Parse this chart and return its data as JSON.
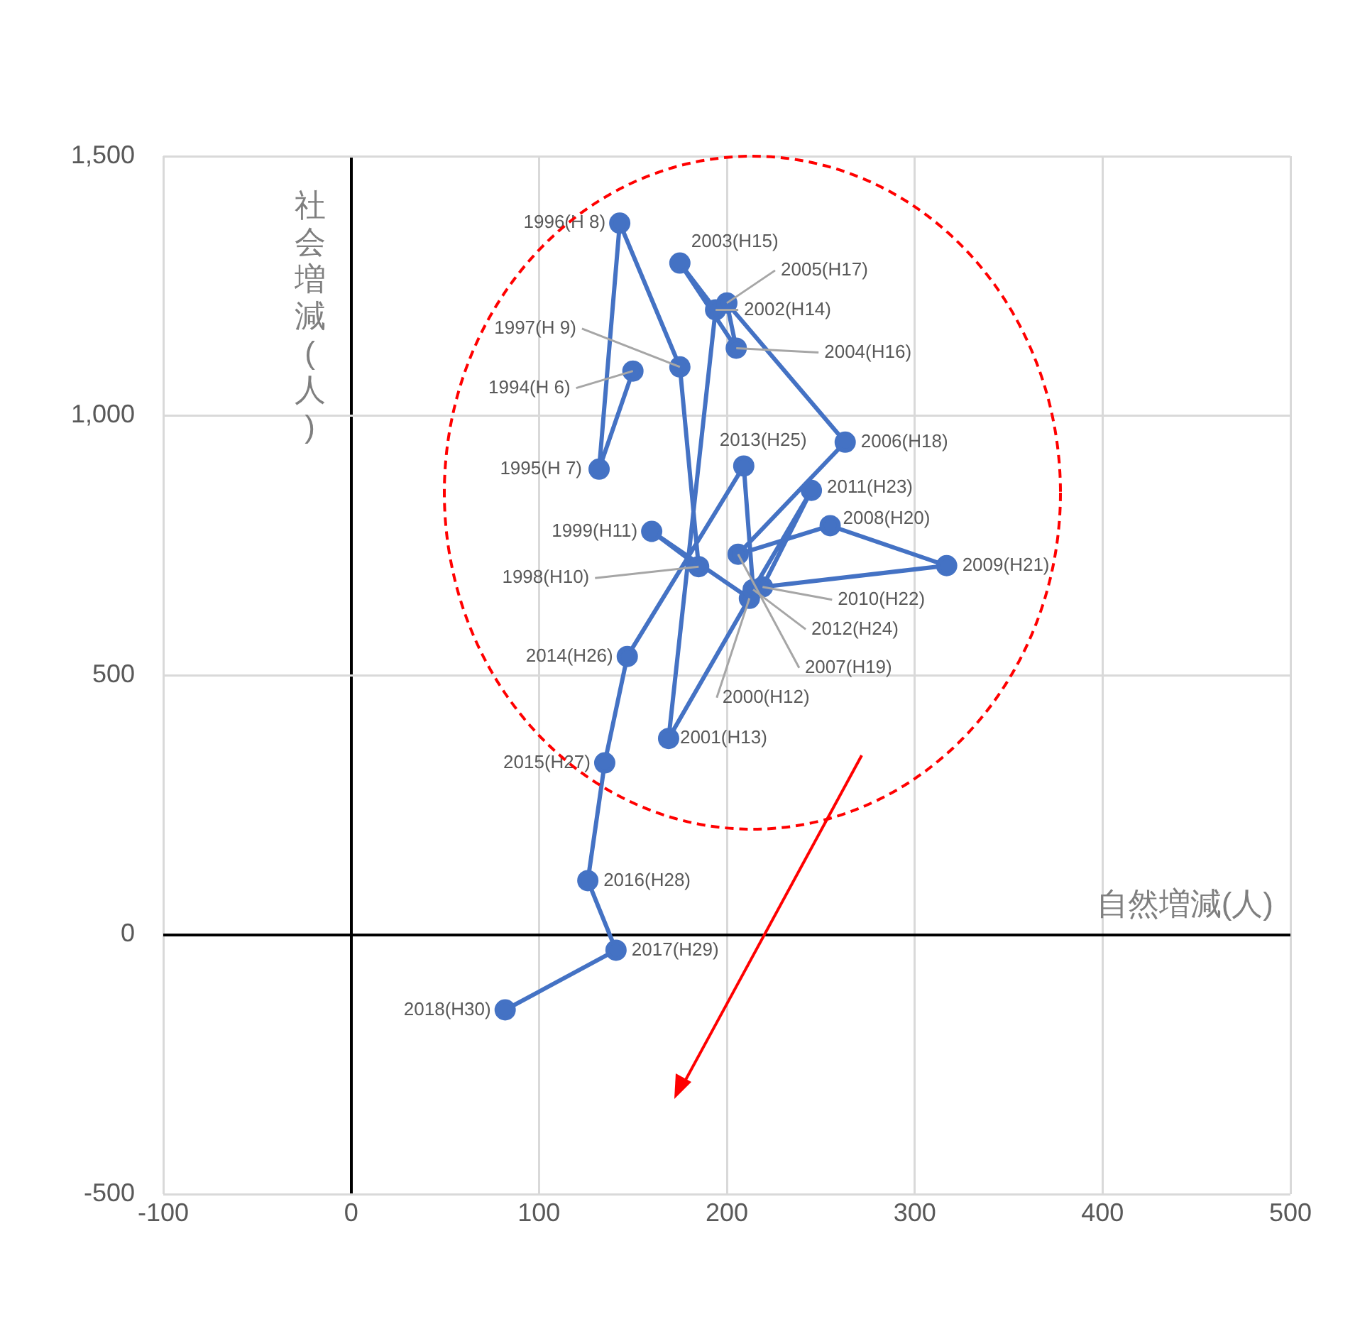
{
  "chart_data": {
    "type": "line",
    "xlabel": "自然増減(人)",
    "ylabel": "社会増減(人)",
    "x": [
      150,
      132,
      143,
      175,
      185,
      160,
      212,
      169,
      194,
      175,
      205,
      200,
      263,
      206,
      255,
      317,
      219,
      245,
      214,
      209,
      147,
      135,
      126,
      141,
      82
    ],
    "series": [
      {
        "color": "#4472c4",
        "values": [
          1086,
          897,
          1371,
          1094,
          709,
          777,
          648,
          378,
          1204,
          1294,
          1130,
          1217,
          949,
          733,
          788,
          711,
          670,
          856,
          665,
          903,
          536,
          331,
          104,
          -30,
          -145
        ]
      }
    ],
    "xlim": [
      -100,
      500
    ],
    "xticks": [
      -100,
      0,
      100,
      200,
      300,
      400,
      500
    ],
    "ylim": [
      -500,
      1500
    ],
    "yticks": [
      -500,
      0,
      500,
      {
        "value": 1000,
        "label": "1,000"
      },
      {
        "value": 1500,
        "label": "1,500"
      }
    ],
    "grid": true,
    "marker": "circle",
    "line_style": "solid",
    "annotations": [
      {
        "text": "1994(H 6)",
        "x": 150,
        "y": 1086
      },
      {
        "text": "1995(H 7)",
        "x": 132,
        "y": 897
      },
      {
        "text": "1996(H 8)",
        "x": 143,
        "y": 1371
      },
      {
        "text": "1997(H 9)",
        "x": 175,
        "y": 1094
      },
      {
        "text": "1998(H10)",
        "x": 185,
        "y": 709
      },
      {
        "text": "1999(H11)",
        "x": 160,
        "y": 777
      },
      {
        "text": "2000(H12)",
        "x": 212,
        "y": 648
      },
      {
        "text": "2001(H13)",
        "x": 169,
        "y": 378
      },
      {
        "text": "2002(H14)",
        "x": 194,
        "y": 1204
      },
      {
        "text": "2003(H15)",
        "x": 175,
        "y": 1294
      },
      {
        "text": "2004(H16)",
        "x": 205,
        "y": 1130
      },
      {
        "text": "2005(H17)",
        "x": 200,
        "y": 1217
      },
      {
        "text": "2006(H18)",
        "x": 263,
        "y": 949
      },
      {
        "text": "2007(H19)",
        "x": 206,
        "y": 733
      },
      {
        "text": "2008(H20)",
        "x": 255,
        "y": 788
      },
      {
        "text": "2009(H21)",
        "x": 317,
        "y": 711
      },
      {
        "text": "2010(H22)",
        "x": 219,
        "y": 670
      },
      {
        "text": "2011(H23)",
        "x": 245,
        "y": 856
      },
      {
        "text": "2012(H24)",
        "x": 214,
        "y": 665
      },
      {
        "text": "2013(H25)",
        "x": 209,
        "y": 903
      },
      {
        "text": "2014(H26)",
        "x": 147,
        "y": 536
      },
      {
        "text": "2015(H27)",
        "x": 135,
        "y": 331
      },
      {
        "text": "2016(H28)",
        "x": 126,
        "y": 104
      },
      {
        "text": "2017(H29)",
        "x": 141,
        "y": -30
      },
      {
        "text": "2018(H30)",
        "x": 82,
        "y": -145
      }
    ]
  }
}
